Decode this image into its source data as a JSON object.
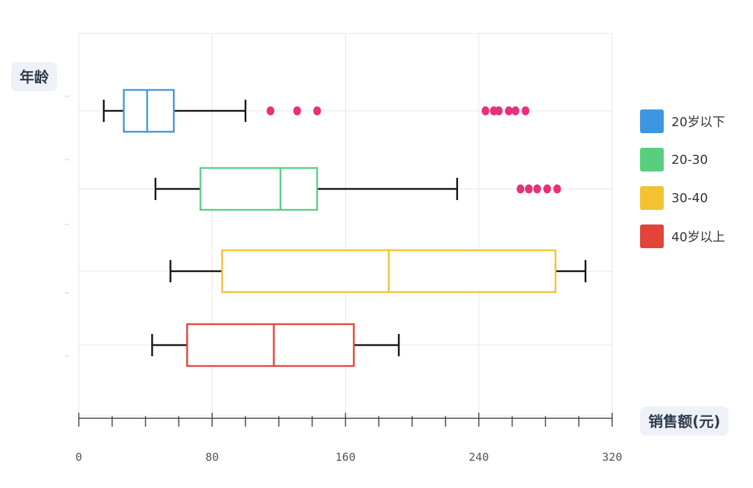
{
  "chart_data": {
    "type": "boxplot",
    "orientation": "horizontal",
    "ylabel": "年龄",
    "xlabel": "销售额(元)",
    "xlim": [
      0,
      320
    ],
    "xticks": [
      0,
      80,
      160,
      240,
      320
    ],
    "grid": true,
    "legend_position": "right",
    "series": [
      {
        "name": "20岁以下",
        "color": "#3d97e0",
        "min": 15,
        "q1": 27,
        "median": 41,
        "q3": 57,
        "max": 100,
        "outliers": [
          115,
          131,
          143,
          244,
          249,
          252,
          258,
          262,
          268
        ]
      },
      {
        "name": "20-30",
        "color": "#57cf7f",
        "min": 46,
        "q1": 73,
        "median": 121,
        "q3": 143,
        "max": 227,
        "outliers": [
          265,
          270,
          275,
          281,
          287
        ]
      },
      {
        "name": "30-40",
        "color": "#f2c232",
        "min": 55,
        "q1": 86,
        "median": 186,
        "q3": 286,
        "max": 304,
        "outliers": []
      },
      {
        "name": "40岁以上",
        "color": "#e2443a",
        "min": 44,
        "q1": 65,
        "median": 117,
        "q3": 165,
        "max": 192,
        "outliers": []
      }
    ]
  },
  "colors": {
    "outlier": "#e8307c",
    "whisker": "#111111",
    "grid": "#e3e6ea",
    "axis": "#444444"
  }
}
